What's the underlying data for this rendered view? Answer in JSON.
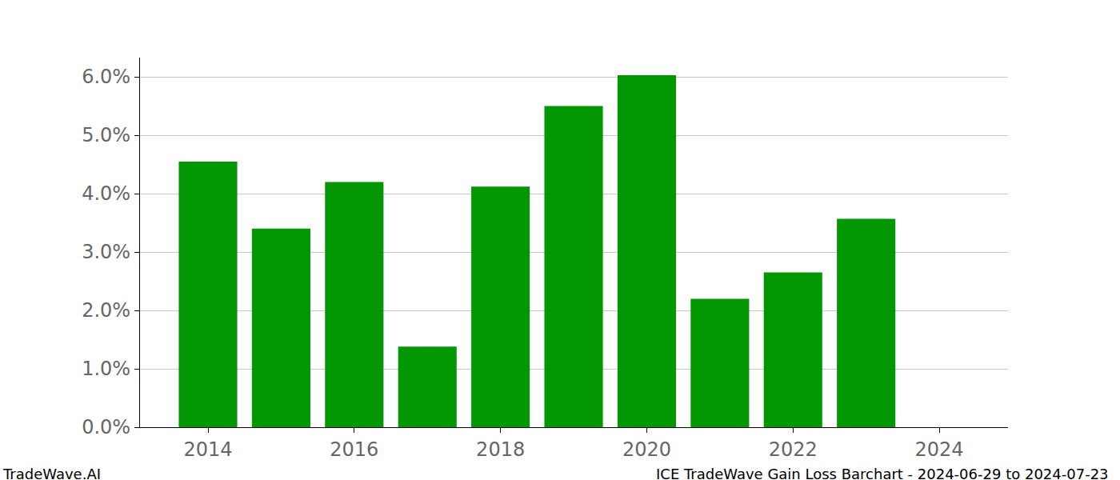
{
  "chart_data": {
    "type": "bar",
    "x": [
      2014,
      2015,
      2016,
      2017,
      2018,
      2019,
      2020,
      2021,
      2022,
      2023
    ],
    "values": [
      4.55,
      3.4,
      4.2,
      1.38,
      4.12,
      5.5,
      6.03,
      2.2,
      2.65,
      3.57
    ],
    "color": "#039803",
    "xlim": [
      2013.07,
      2024.94
    ],
    "xticks": [
      2014,
      2016,
      2018,
      2020,
      2022,
      2024
    ],
    "ylim": [
      0,
      6.33
    ],
    "yticks": [
      {
        "value": 0,
        "label": "0.0%"
      },
      {
        "value": 1,
        "label": "1.0%"
      },
      {
        "value": 2,
        "label": "2.0%"
      },
      {
        "value": 3,
        "label": "3.0%"
      },
      {
        "value": 4,
        "label": "4.0%"
      },
      {
        "value": 5,
        "label": "5.0%"
      },
      {
        "value": 6,
        "label": "6.0%"
      }
    ],
    "grid": true,
    "annotations": [
      {
        "text": "TradeWave.AI"
      },
      {
        "text": "ICE TradeWave Gain Loss Barchart - 2024-06-29 to 2024-07-23"
      }
    ]
  }
}
